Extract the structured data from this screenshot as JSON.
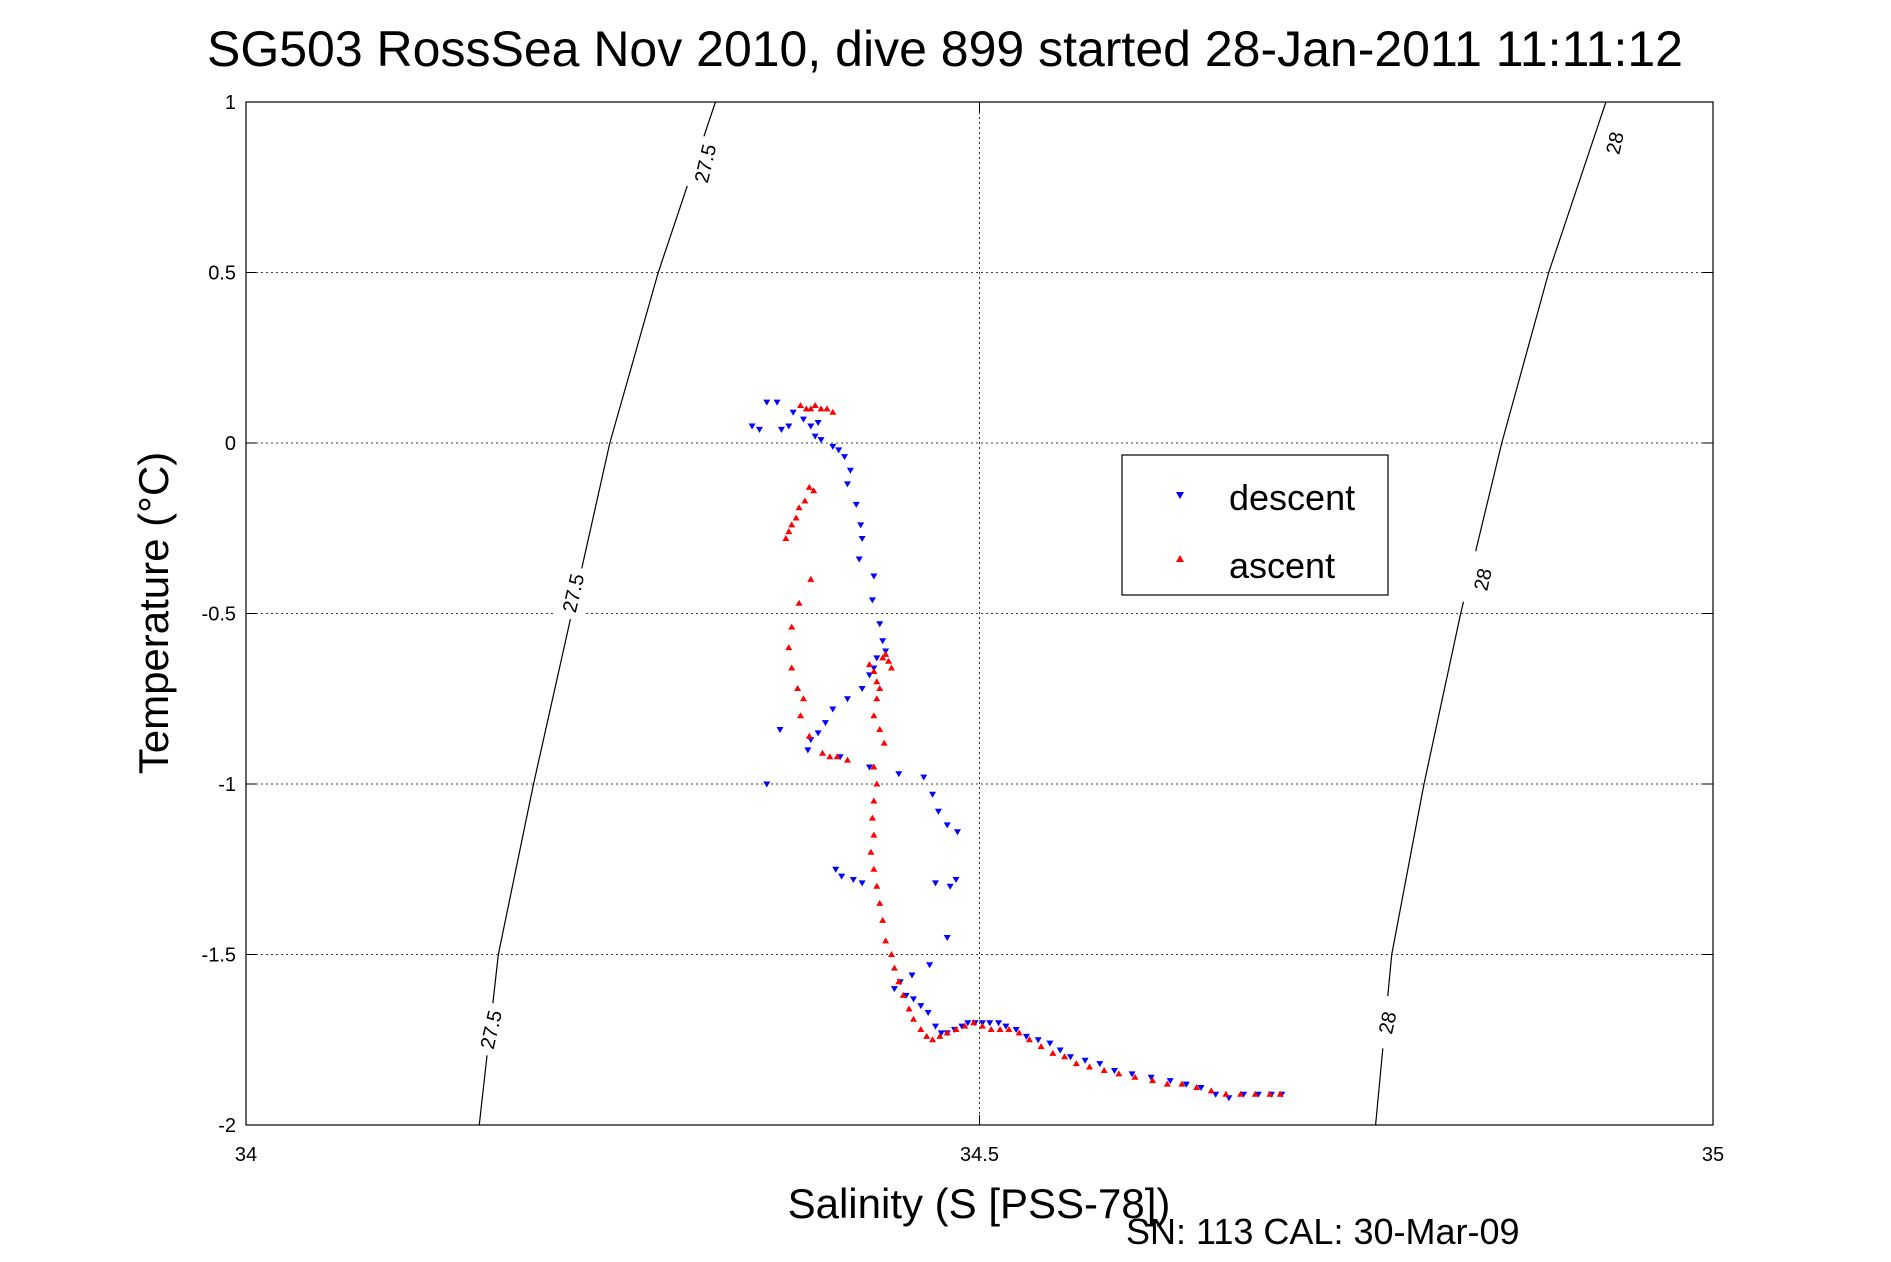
{
  "chart_data": {
    "type": "scatter",
    "title": "SG503 RossSea Nov 2010, dive 899 started 28-Jan-2011 11:11:12",
    "xlabel": "Salinity (S [PSS-78])",
    "ylabel": "Temperature (°C)",
    "xlim": [
      34,
      35
    ],
    "ylim": [
      -2,
      1
    ],
    "xticks": [
      "34",
      "34.5",
      "35"
    ],
    "yticks": [
      "1",
      "0.5",
      "0",
      "-0.5",
      "-1",
      "-1.5",
      "-2"
    ],
    "grid": true,
    "legend_position": "right-center",
    "footer": "SN: 113  CAL: 30-Mar-09",
    "contours": [
      {
        "label": "27.5",
        "points": [
          [
            34.159,
            -2.0
          ],
          [
            34.172,
            -1.5
          ],
          [
            34.196,
            -1.0
          ],
          [
            34.222,
            -0.5
          ],
          [
            34.248,
            0.0
          ],
          [
            34.281,
            0.5
          ],
          [
            34.32,
            1.0
          ]
        ],
        "label_positions": [
          [
            34.167,
            -1.72
          ],
          [
            34.223,
            -0.44
          ],
          [
            34.313,
            0.82
          ]
        ]
      },
      {
        "label": "28",
        "points": [
          [
            34.77,
            -2.0
          ],
          [
            34.781,
            -1.5
          ],
          [
            34.803,
            -1.0
          ],
          [
            34.828,
            -0.5
          ],
          [
            34.856,
            0.0
          ],
          [
            34.888,
            0.5
          ],
          [
            34.927,
            1.0
          ]
        ],
        "label_positions": [
          [
            34.778,
            -1.7
          ],
          [
            34.843,
            -0.4
          ],
          [
            34.933,
            0.88
          ]
        ]
      }
    ],
    "series": [
      {
        "name": "descent",
        "color": "#0000ff",
        "marker": "triangle-down",
        "points": [
          [
            34.345,
            0.05
          ],
          [
            34.35,
            0.04
          ],
          [
            34.355,
            0.12
          ],
          [
            34.362,
            0.12
          ],
          [
            34.365,
            0.04
          ],
          [
            34.37,
            0.05
          ],
          [
            34.373,
            0.09
          ],
          [
            34.38,
            0.07
          ],
          [
            34.385,
            0.05
          ],
          [
            34.39,
            0.06
          ],
          [
            34.388,
            0.02
          ],
          [
            34.392,
            0.01
          ],
          [
            34.4,
            -0.01
          ],
          [
            34.404,
            -0.02
          ],
          [
            34.408,
            -0.04
          ],
          [
            34.412,
            -0.08
          ],
          [
            34.41,
            -0.12
          ],
          [
            34.416,
            -0.18
          ],
          [
            34.419,
            -0.24
          ],
          [
            34.42,
            -0.28
          ],
          [
            34.418,
            -0.34
          ],
          [
            34.428,
            -0.39
          ],
          [
            34.427,
            -0.46
          ],
          [
            34.432,
            -0.53
          ],
          [
            34.434,
            -0.58
          ],
          [
            34.436,
            -0.61
          ],
          [
            34.43,
            -0.63
          ],
          [
            34.428,
            -0.66
          ],
          [
            34.425,
            -0.68
          ],
          [
            34.42,
            -0.72
          ],
          [
            34.41,
            -0.75
          ],
          [
            34.4,
            -0.78
          ],
          [
            34.395,
            -0.82
          ],
          [
            34.39,
            -0.85
          ],
          [
            34.385,
            -0.87
          ],
          [
            34.383,
            -0.9
          ],
          [
            34.405,
            -0.92
          ],
          [
            34.425,
            -0.95
          ],
          [
            34.445,
            -0.97
          ],
          [
            34.462,
            -0.98
          ],
          [
            34.468,
            -1.03
          ],
          [
            34.472,
            -1.08
          ],
          [
            34.478,
            -1.12
          ],
          [
            34.485,
            -1.14
          ],
          [
            34.364,
            -0.84
          ],
          [
            34.355,
            -1.0
          ],
          [
            34.402,
            -1.25
          ],
          [
            34.406,
            -1.27
          ],
          [
            34.414,
            -1.28
          ],
          [
            34.42,
            -1.29
          ],
          [
            34.47,
            -1.29
          ],
          [
            34.48,
            -1.3
          ],
          [
            34.484,
            -1.28
          ],
          [
            34.478,
            -1.45
          ],
          [
            34.466,
            -1.53
          ],
          [
            34.454,
            -1.56
          ],
          [
            34.446,
            -1.58
          ],
          [
            34.442,
            -1.6
          ],
          [
            34.45,
            -1.62
          ],
          [
            34.455,
            -1.63
          ],
          [
            34.46,
            -1.65
          ],
          [
            34.465,
            -1.67
          ],
          [
            34.47,
            -1.71
          ],
          [
            34.474,
            -1.73
          ],
          [
            34.478,
            -1.73
          ],
          [
            34.483,
            -1.72
          ],
          [
            34.488,
            -1.71
          ],
          [
            34.492,
            -1.7
          ],
          [
            34.497,
            -1.7
          ],
          [
            34.502,
            -1.7
          ],
          [
            34.507,
            -1.7
          ],
          [
            34.513,
            -1.7
          ],
          [
            34.518,
            -1.71
          ],
          [
            34.525,
            -1.72
          ],
          [
            34.532,
            -1.74
          ],
          [
            34.54,
            -1.75
          ],
          [
            34.548,
            -1.76
          ],
          [
            34.555,
            -1.78
          ],
          [
            34.562,
            -1.8
          ],
          [
            34.572,
            -1.81
          ],
          [
            34.582,
            -1.82
          ],
          [
            34.592,
            -1.84
          ],
          [
            34.604,
            -1.85
          ],
          [
            34.617,
            -1.86
          ],
          [
            34.63,
            -1.87
          ],
          [
            34.641,
            -1.88
          ],
          [
            34.651,
            -1.89
          ],
          [
            34.661,
            -1.91
          ],
          [
            34.67,
            -1.92
          ],
          [
            34.68,
            -1.91
          ],
          [
            34.69,
            -1.91
          ],
          [
            34.699,
            -1.91
          ],
          [
            34.706,
            -1.91
          ]
        ]
      },
      {
        "name": "ascent",
        "color": "#ff0000",
        "marker": "triangle-up",
        "points": [
          [
            34.378,
            0.11
          ],
          [
            34.382,
            0.1
          ],
          [
            34.385,
            0.1
          ],
          [
            34.388,
            0.11
          ],
          [
            34.392,
            0.1
          ],
          [
            34.396,
            0.1
          ],
          [
            34.4,
            0.09
          ],
          [
            34.384,
            -0.13
          ],
          [
            34.387,
            -0.14
          ],
          [
            34.381,
            -0.17
          ],
          [
            34.377,
            -0.19
          ],
          [
            34.375,
            -0.22
          ],
          [
            34.372,
            -0.24
          ],
          [
            34.37,
            -0.26
          ],
          [
            34.368,
            -0.28
          ],
          [
            34.385,
            -0.4
          ],
          [
            34.377,
            -0.47
          ],
          [
            34.372,
            -0.54
          ],
          [
            34.37,
            -0.6
          ],
          [
            34.372,
            -0.66
          ],
          [
            34.376,
            -0.72
          ],
          [
            34.38,
            -0.75
          ],
          [
            34.378,
            -0.8
          ],
          [
            34.384,
            -0.86
          ],
          [
            34.393,
            -0.91
          ],
          [
            34.398,
            -0.92
          ],
          [
            34.403,
            -0.92
          ],
          [
            34.41,
            -0.93
          ],
          [
            34.425,
            -0.65
          ],
          [
            34.428,
            -0.67
          ],
          [
            34.43,
            -0.7
          ],
          [
            34.432,
            -0.72
          ],
          [
            34.434,
            -0.63
          ],
          [
            34.436,
            -0.62
          ],
          [
            34.438,
            -0.64
          ],
          [
            34.44,
            -0.66
          ],
          [
            34.43,
            -0.75
          ],
          [
            34.428,
            -0.8
          ],
          [
            34.432,
            -0.84
          ],
          [
            34.435,
            -0.88
          ],
          [
            34.428,
            -0.95
          ],
          [
            34.43,
            -1.0
          ],
          [
            34.428,
            -1.05
          ],
          [
            34.427,
            -1.1
          ],
          [
            34.428,
            -1.15
          ],
          [
            34.426,
            -1.2
          ],
          [
            34.428,
            -1.25
          ],
          [
            34.43,
            -1.3
          ],
          [
            34.432,
            -1.35
          ],
          [
            34.434,
            -1.4
          ],
          [
            34.436,
            -1.46
          ],
          [
            34.44,
            -1.5
          ],
          [
            34.442,
            -1.54
          ],
          [
            34.445,
            -1.58
          ],
          [
            34.448,
            -1.62
          ],
          [
            34.452,
            -1.66
          ],
          [
            34.455,
            -1.69
          ],
          [
            34.46,
            -1.72
          ],
          [
            34.464,
            -1.74
          ],
          [
            34.468,
            -1.75
          ],
          [
            34.473,
            -1.74
          ],
          [
            34.478,
            -1.73
          ],
          [
            34.484,
            -1.72
          ],
          [
            34.49,
            -1.71
          ],
          [
            34.496,
            -1.7
          ],
          [
            34.502,
            -1.71
          ],
          [
            34.508,
            -1.72
          ],
          [
            34.514,
            -1.72
          ],
          [
            34.52,
            -1.72
          ],
          [
            34.527,
            -1.73
          ],
          [
            34.534,
            -1.75
          ],
          [
            34.542,
            -1.77
          ],
          [
            34.55,
            -1.79
          ],
          [
            34.558,
            -1.8
          ],
          [
            34.566,
            -1.82
          ],
          [
            34.575,
            -1.83
          ],
          [
            34.585,
            -1.84
          ],
          [
            34.595,
            -1.85
          ],
          [
            34.606,
            -1.86
          ],
          [
            34.618,
            -1.87
          ],
          [
            34.628,
            -1.88
          ],
          [
            34.638,
            -1.88
          ],
          [
            34.648,
            -1.89
          ],
          [
            34.658,
            -1.9
          ],
          [
            34.668,
            -1.91
          ],
          [
            34.678,
            -1.91
          ],
          [
            34.688,
            -1.91
          ],
          [
            34.698,
            -1.91
          ],
          [
            34.705,
            -1.91
          ]
        ]
      }
    ]
  }
}
